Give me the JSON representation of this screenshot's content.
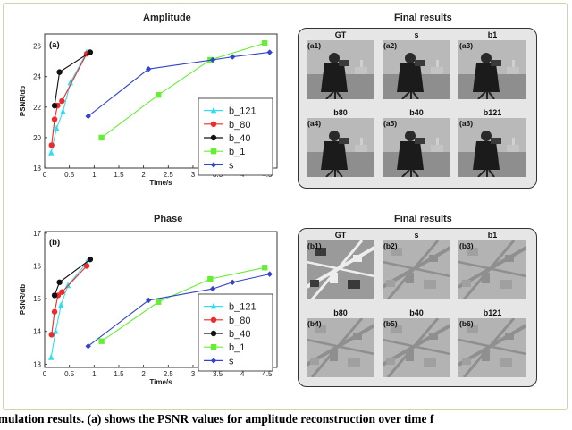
{
  "colors": {
    "b_121": "#33ddee",
    "b_80": "#ee2a2a",
    "b_40": "#111111",
    "b_1": "#66ee33",
    "s": "#3344cc"
  },
  "panels": {
    "amplitude_title": "Amplitude",
    "phase_title": "Phase",
    "final_results_top": "Final results",
    "final_results_bottom": "Final results"
  },
  "chart_data": [
    {
      "type": "line",
      "title": "Amplitude",
      "panel_label": "(a)",
      "xlabel": "Time/s",
      "ylabel": "PSNR/db",
      "xlim": [
        0,
        4.7
      ],
      "ylim": [
        18,
        26.8
      ],
      "xticks": [
        "0",
        "0.5",
        "1",
        "1.5",
        "2",
        "2.5",
        "3",
        "3.5",
        "4",
        "4.5"
      ],
      "yticks": [
        "18",
        "20",
        "22",
        "24",
        "26"
      ],
      "xtick_values": [
        0,
        0.5,
        1,
        1.5,
        2,
        2.5,
        3,
        3.5,
        4,
        4.5
      ],
      "ytick_values": [
        18,
        20,
        22,
        24,
        26
      ],
      "legend_position": "lower-right",
      "series": [
        {
          "name": "b_121",
          "marker": "triangle",
          "x": [
            0.13,
            0.24,
            0.37,
            0.52,
            0.85
          ],
          "y": [
            19.0,
            20.6,
            21.7,
            23.6,
            25.6
          ]
        },
        {
          "name": "b_80",
          "marker": "circle",
          "x": [
            0.14,
            0.2,
            0.26,
            0.35,
            0.85
          ],
          "y": [
            19.5,
            21.2,
            22.1,
            22.4,
            25.5
          ]
        },
        {
          "name": "b_40",
          "marker": "circle",
          "x": [
            0.2,
            0.3,
            0.92
          ],
          "y": [
            22.1,
            24.3,
            25.6
          ]
        },
        {
          "name": "b_1",
          "marker": "square",
          "x": [
            1.15,
            2.3,
            3.35,
            4.45
          ],
          "y": [
            20.0,
            22.8,
            25.1,
            26.2
          ]
        },
        {
          "name": "s",
          "marker": "diamond",
          "x": [
            0.88,
            2.1,
            3.4,
            3.8,
            4.55
          ],
          "y": [
            21.4,
            24.5,
            25.1,
            25.3,
            25.6
          ]
        }
      ]
    },
    {
      "type": "line",
      "title": "Phase",
      "panel_label": "(b)",
      "xlabel": "Time/s",
      "ylabel": "PSNR/db",
      "xlim": [
        0,
        4.7
      ],
      "ylim": [
        12.9,
        17.05
      ],
      "xticks": [
        "0",
        "0.5",
        "1",
        "1.5",
        "2",
        "2.5",
        "3",
        "3.5",
        "4",
        "4.5"
      ],
      "yticks": [
        "13",
        "14",
        "15",
        "16",
        "17"
      ],
      "xtick_values": [
        0,
        0.5,
        1,
        1.5,
        2,
        2.5,
        3,
        3.5,
        4,
        4.5
      ],
      "ytick_values": [
        13,
        14,
        15,
        16,
        17
      ],
      "legend_position": "lower-right",
      "series": [
        {
          "name": "b_121",
          "marker": "triangle",
          "x": [
            0.13,
            0.22,
            0.33,
            0.47,
            0.85
          ],
          "y": [
            13.2,
            14.0,
            14.8,
            15.4,
            16.1
          ]
        },
        {
          "name": "b_80",
          "marker": "circle",
          "x": [
            0.14,
            0.2,
            0.27,
            0.35,
            0.85
          ],
          "y": [
            13.9,
            14.6,
            15.1,
            15.2,
            16.0
          ]
        },
        {
          "name": "b_40",
          "marker": "circle",
          "x": [
            0.2,
            0.3,
            0.92
          ],
          "y": [
            15.1,
            15.5,
            16.2
          ]
        },
        {
          "name": "b_1",
          "marker": "square",
          "x": [
            1.15,
            2.3,
            3.35,
            4.45
          ],
          "y": [
            13.7,
            14.9,
            15.6,
            15.95
          ]
        },
        {
          "name": "s",
          "marker": "diamond",
          "x": [
            0.88,
            2.1,
            3.4,
            3.8,
            4.55
          ],
          "y": [
            13.55,
            14.95,
            15.3,
            15.5,
            15.75
          ]
        }
      ]
    }
  ],
  "final_results": {
    "amplitude": [
      {
        "title": "GT",
        "tag": "(a1)"
      },
      {
        "title": "s",
        "tag": "(a2)"
      },
      {
        "title": "b1",
        "tag": "(a3)"
      },
      {
        "title": "b80",
        "tag": "(a4)"
      },
      {
        "title": "b40",
        "tag": "(a5)"
      },
      {
        "title": "b121",
        "tag": "(a6)"
      }
    ],
    "phase": [
      {
        "title": "GT",
        "tag": "(b1)"
      },
      {
        "title": "s",
        "tag": "(b2)"
      },
      {
        "title": "b1",
        "tag": "(b3)"
      },
      {
        "title": "b80",
        "tag": "(b4)"
      },
      {
        "title": "b40",
        "tag": "(b5)"
      },
      {
        "title": "b121",
        "tag": "(b6)"
      }
    ]
  },
  "caption": "imulation results. (a) shows the PSNR values for amplitude reconstruction over time f"
}
